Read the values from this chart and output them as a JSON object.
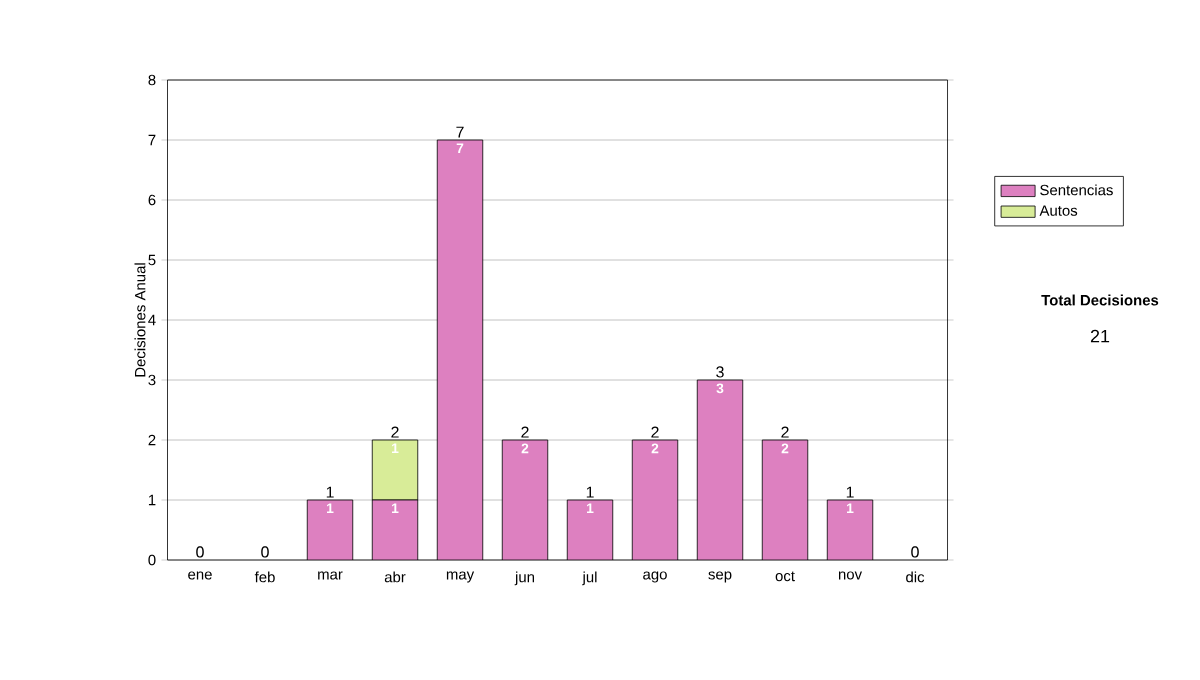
{
  "chart_data": {
    "type": "bar",
    "stacked": true,
    "ylabel": "Decisiones Anual",
    "categories": [
      "ene",
      "feb",
      "mar",
      "abr",
      "may",
      "jun",
      "jul",
      "ago",
      "sep",
      "oct",
      "nov",
      "dic"
    ],
    "series": [
      {
        "name": "Sentencias",
        "color": "#dd80c0",
        "values": [
          0,
          0,
          1,
          1,
          7,
          2,
          1,
          2,
          3,
          2,
          1,
          0
        ],
        "value_labels": [
          null,
          null,
          "1",
          "1",
          "7",
          "2",
          "1",
          "2",
          "3",
          "2",
          "1",
          null
        ]
      },
      {
        "name": "Autos",
        "color": "#d8ec98",
        "values": [
          0,
          0,
          0,
          1,
          0,
          0,
          0,
          0,
          0,
          0,
          0,
          0
        ],
        "value_labels": [
          null,
          null,
          null,
          "1",
          null,
          null,
          null,
          null,
          null,
          null,
          null,
          null
        ]
      }
    ],
    "totals": [
      "0",
      "0",
      "1",
      "2",
      "7",
      "2",
      "1",
      "2",
      "3",
      "2",
      "1",
      "0"
    ],
    "ylim": [
      0,
      8
    ],
    "yticks": [
      0,
      1,
      2,
      3,
      4,
      5,
      6,
      7,
      8
    ],
    "grid": "y",
    "legend": "right",
    "annotations": [
      "Total Decisiones",
      "21"
    ]
  }
}
